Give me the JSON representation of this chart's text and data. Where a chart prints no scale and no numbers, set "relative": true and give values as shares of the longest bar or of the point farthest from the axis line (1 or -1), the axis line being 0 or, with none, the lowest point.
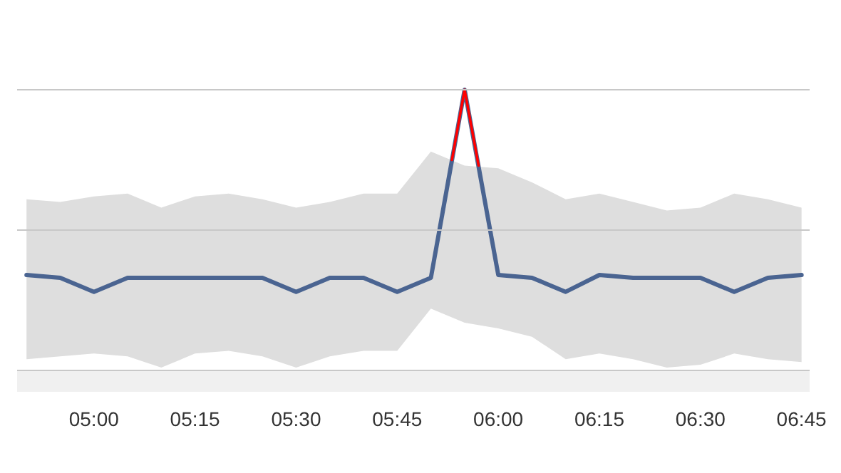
{
  "chart_data": {
    "type": "line",
    "relative": true,
    "ref_lines": [
      {
        "axis": "y",
        "value": 0.5,
        "color": "#c8c8c8"
      },
      {
        "axis": "y",
        "value": 1,
        "color": "#c8c8c8"
      }
    ],
    "x": [
      4.8333,
      4.9167,
      5.0,
      5.0833,
      5.1667,
      5.25,
      5.3333,
      5.4167,
      5.5,
      5.5833,
      5.6667,
      5.75,
      5.8333,
      5.9167,
      6.0,
      6.0833,
      6.1667,
      6.25,
      6.3333,
      6.4167,
      6.5,
      6.5833,
      6.6667,
      6.75
    ],
    "xlim": [
      4.81,
      6.77
    ],
    "xticks": [
      {
        "value": 5.0,
        "label": "05:00"
      },
      {
        "value": 5.25,
        "label": "05:15"
      },
      {
        "value": 5.5,
        "label": "05:30"
      },
      {
        "value": 5.75,
        "label": "05:45"
      },
      {
        "value": 6.0,
        "label": "06:00"
      },
      {
        "value": 6.25,
        "label": "06:15"
      },
      {
        "value": 6.5,
        "label": "06:30"
      },
      {
        "value": 6.75,
        "label": "06:45"
      }
    ],
    "series": [
      {
        "color": "#4a6491",
        "values": [
          0.34,
          0.33,
          0.28,
          0.33,
          0.33,
          0.33,
          0.33,
          0.33,
          0.28,
          0.33,
          0.33,
          0.28,
          0.33,
          1,
          0.34,
          0.33,
          0.28,
          0.34,
          0.33,
          0.33,
          0.33,
          0.28,
          0.33,
          0.34
        ],
        "lower": [
          0.04,
          0.05,
          0.06,
          0.05,
          0.01,
          0.06,
          0.07,
          0.05,
          0.01,
          0.05,
          0.07,
          0.07,
          0.22,
          0.17,
          0.15,
          0.12,
          0.04,
          0.06,
          0.04,
          0.01,
          0.02,
          0.06,
          0.04,
          0.03
        ],
        "upper": [
          0.61,
          0.6,
          0.62,
          0.63,
          0.58,
          0.62,
          0.63,
          0.61,
          0.58,
          0.6,
          0.63,
          0.63,
          0.78,
          0.73,
          0.72,
          0.67,
          0.61,
          0.63,
          0.6,
          0.57,
          0.58,
          0.63,
          0.61,
          0.58
        ]
      },
      {
        "color": "#ff0000",
        "x": [
          5.8854,
          5.9167,
          5.9513
        ],
        "values": [
          0.75,
          1,
          0.73
        ]
      }
    ]
  }
}
